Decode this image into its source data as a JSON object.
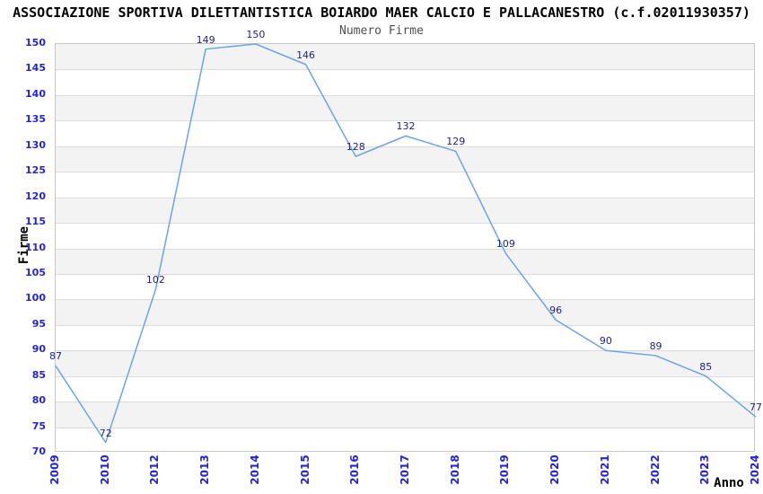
{
  "chart_data": {
    "type": "line",
    "title": "ASSOCIAZIONE SPORTIVA DILETTANTISTICA BOIARDO MAER CALCIO E PALLACANESTRO (c.f.02011930357)",
    "subtitle": "Numero Firme",
    "xlabel": "Anno",
    "ylabel": "Firme",
    "categories": [
      "2009",
      "2010",
      "2012",
      "2013",
      "2014",
      "2015",
      "2016",
      "2017",
      "2018",
      "2019",
      "2020",
      "2021",
      "2022",
      "2023",
      "2024"
    ],
    "series": [
      {
        "name": "Numero Firme",
        "values": [
          87,
          72,
          102,
          149,
          150,
          146,
          128,
          132,
          129,
          109,
          96,
          90,
          89,
          85,
          77
        ]
      }
    ],
    "ylim": [
      70,
      150
    ],
    "ytick_step": 5,
    "yticks": [
      70,
      75,
      80,
      85,
      90,
      95,
      100,
      105,
      110,
      115,
      120,
      125,
      130,
      135,
      140,
      145,
      150
    ],
    "grid": "alternating-horizontal-bands",
    "legend": "none",
    "point_labels_shown": true,
    "markers": "none",
    "colors": {
      "line": "#6da3e8",
      "band_fill": "#f3f3f3",
      "gridline": "#dcdcdc",
      "plot_border": "#c8c8c8",
      "tick_label": "#2323dd",
      "point_label": "#1e1e8e",
      "title_color": "#000000",
      "subtitle_color": "#4f4f4f",
      "axis_title_color": "#000000",
      "background": "#ffffff"
    }
  }
}
